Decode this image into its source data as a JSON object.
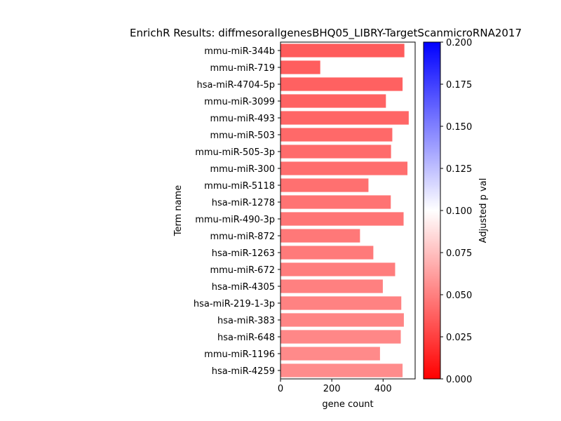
{
  "chart_data": {
    "type": "bar",
    "orientation": "horizontal",
    "title": "EnrichR Results: diffmesorallgenesBHQ05_LIBRY-TargetScanmicroRNA2017",
    "xlabel": "gene count",
    "ylabel": "Term name",
    "xlim": [
      0,
      525
    ],
    "xticks": [
      0,
      200,
      400
    ],
    "categories": [
      "mmu-miR-344b",
      "mmu-miR-719",
      "hsa-miR-4704-5p",
      "mmu-miR-3099",
      "mmu-miR-493",
      "mmu-miR-503",
      "mmu-miR-505-3p",
      "mmu-miR-300",
      "mmu-miR-5118",
      "hsa-miR-1278",
      "mmu-miR-490-3p",
      "mmu-miR-872",
      "hsa-miR-1263",
      "mmu-miR-672",
      "hsa-miR-4305",
      "hsa-miR-219-1-3p",
      "hsa-miR-383",
      "hsa-miR-648",
      "mmu-miR-1196",
      "hsa-miR-4259"
    ],
    "values": [
      483,
      155,
      476,
      411,
      500,
      436,
      431,
      495,
      343,
      430,
      480,
      310,
      362,
      447,
      399,
      471,
      481,
      469,
      388,
      476
    ],
    "adjusted_p_val": [
      0.036,
      0.037,
      0.038,
      0.039,
      0.04,
      0.041,
      0.042,
      0.043,
      0.044,
      0.045,
      0.046,
      0.047,
      0.048,
      0.049,
      0.05,
      0.051,
      0.052,
      0.053,
      0.054,
      0.055
    ],
    "colorbar": {
      "label": "Adjusted p val",
      "range": [
        0,
        0.2
      ],
      "ticks": [
        "0.000",
        "0.025",
        "0.050",
        "0.075",
        "0.100",
        "0.125",
        "0.150",
        "0.175",
        "0.200"
      ],
      "colormap": [
        "#ff0000",
        "#ffffff",
        "#0000ff"
      ]
    },
    "grid": false,
    "legend": "none"
  }
}
